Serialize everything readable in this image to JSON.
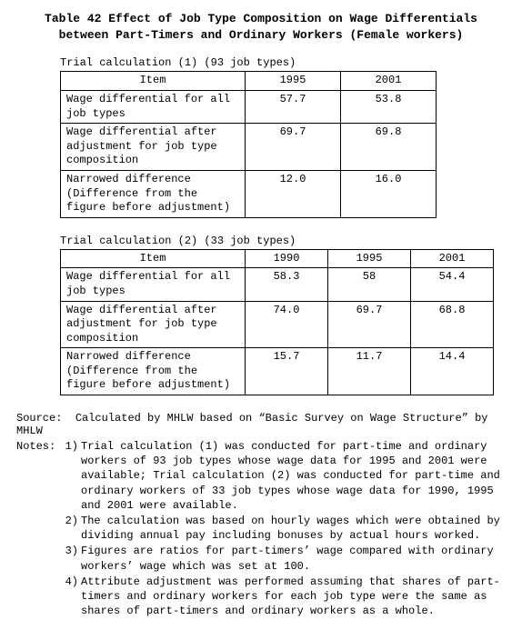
{
  "title_line1": "Table 42 Effect of Job Type Composition on Wage Differentials",
  "title_line2": "between Part-Timers and Ordinary Workers (Female workers)",
  "table1": {
    "caption": "Trial calculation (1) (93 job types)",
    "header_item": "Item",
    "years": [
      "1995",
      "2001"
    ],
    "rows": [
      {
        "label": "Wage differential for all job types",
        "vals": [
          "57.7",
          "53.8"
        ]
      },
      {
        "label": "Wage differential after adjustment for job type composition",
        "vals": [
          "69.7",
          "69.8"
        ]
      },
      {
        "label": "Narrowed difference (Difference from the figure before adjustment)",
        "vals": [
          "12.0",
          "16.0"
        ]
      }
    ]
  },
  "table2": {
    "caption": "Trial calculation (2) (33 job types)",
    "header_item": "Item",
    "years": [
      "1990",
      "1995",
      "2001"
    ],
    "rows": [
      {
        "label": "Wage differential for all job types",
        "vals": [
          "58.3",
          "58",
          "54.4"
        ]
      },
      {
        "label": "Wage differential after adjustment for job type composition",
        "vals": [
          "74.0",
          "69.7",
          "68.8"
        ]
      },
      {
        "label": "Narrowed difference (Difference from the figure before adjustment)",
        "vals": [
          "15.7",
          "11.7",
          "14.4"
        ]
      }
    ]
  },
  "source_label": "Source:",
  "source_text": "Calculated by MHLW based on “Basic Survey on Wage Structure” by MHLW",
  "notes_label": "Notes:",
  "notes": [
    {
      "n": "1)",
      "t": "Trial calculation (1) was conducted for part-time and ordinary workers of 93 job types whose wage data for 1995 and 2001 were available; Trial calculation (2) was conducted for part-time and ordinary workers of 33 job types whose wage data for 1990, 1995 and 2001 were available."
    },
    {
      "n": "2)",
      "t": "The calculation was based on hourly wages which were obtained by dividing annual pay including bonuses by actual hours worked."
    },
    {
      "n": "3)",
      "t": "Figures are ratios for part-timers’ wage compared with ordinary workers’ wage which was set at 100."
    },
    {
      "n": "4)",
      "t": "Attribute adjustment was performed assuming that shares of part-timers and ordinary workers for each job type were the same as shares of part-timers and ordinary workers as a whole."
    }
  ]
}
